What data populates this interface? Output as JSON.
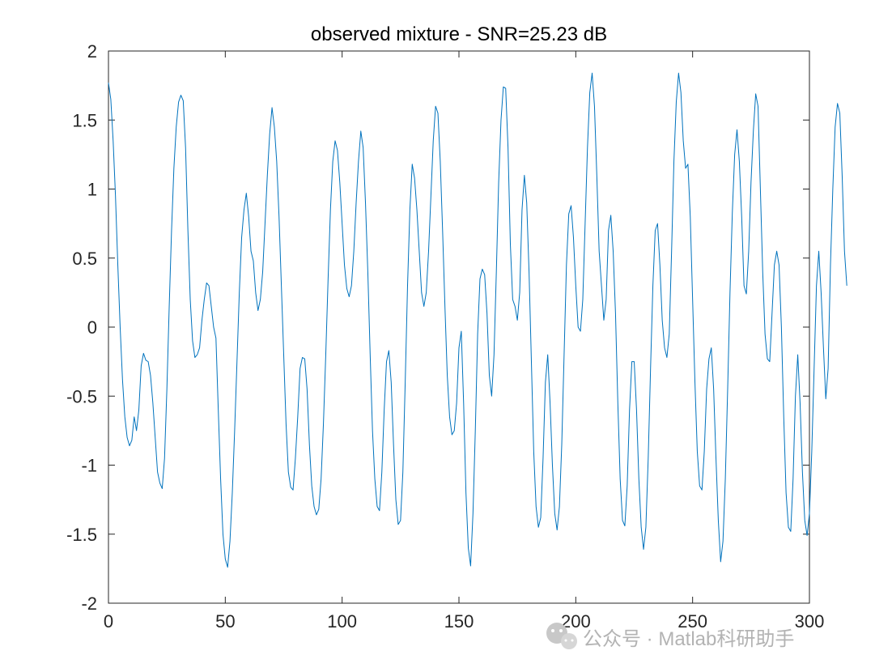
{
  "watermark": {
    "text": "公众号 · Matlab科研助手",
    "icon": "wechat-icon"
  },
  "chart_data": {
    "type": "line",
    "title": "observed mixture - SNR=25.23 dB",
    "xlabel": "",
    "ylabel": "",
    "xlim": [
      0,
      300
    ],
    "ylim": [
      -2,
      2
    ],
    "xticks": [
      0,
      50,
      100,
      150,
      200,
      250,
      300
    ],
    "yticks": [
      -2,
      -1.5,
      -1,
      -0.5,
      0,
      0.5,
      1,
      1.5,
      2
    ],
    "grid": false,
    "legend": "none",
    "colors": {
      "series": "#0072BD",
      "axes": "#262626"
    },
    "series": [
      {
        "x_start": 0,
        "x_step": 1,
        "y": [
          1.77,
          1.65,
          1.35,
          0.95,
          0.45,
          0.0,
          -0.38,
          -0.65,
          -0.8,
          -0.86,
          -0.82,
          -0.65,
          -0.75,
          -0.6,
          -0.28,
          -0.19,
          -0.24,
          -0.25,
          -0.35,
          -0.55,
          -0.8,
          -1.05,
          -1.13,
          -1.17,
          -0.95,
          -0.45,
          0.15,
          0.7,
          1.15,
          1.45,
          1.63,
          1.68,
          1.64,
          1.3,
          0.7,
          0.2,
          -0.1,
          -0.22,
          -0.2,
          -0.15,
          0.05,
          0.2,
          0.32,
          0.3,
          0.15,
          0.0,
          -0.08,
          -0.6,
          -1.1,
          -1.5,
          -1.68,
          -1.74,
          -1.55,
          -1.2,
          -0.75,
          -0.25,
          0.25,
          0.65,
          0.85,
          0.97,
          0.8,
          0.55,
          0.48,
          0.25,
          0.12,
          0.2,
          0.4,
          0.75,
          1.1,
          1.4,
          1.59,
          1.45,
          1.2,
          0.8,
          0.3,
          -0.2,
          -0.7,
          -1.05,
          -1.16,
          -1.18,
          -0.95,
          -0.65,
          -0.3,
          -0.22,
          -0.23,
          -0.45,
          -0.85,
          -1.15,
          -1.3,
          -1.36,
          -1.32,
          -1.1,
          -0.7,
          -0.2,
          0.35,
          0.85,
          1.2,
          1.35,
          1.28,
          1.05,
          0.75,
          0.45,
          0.28,
          0.22,
          0.3,
          0.55,
          0.9,
          1.2,
          1.42,
          1.3,
          0.9,
          0.4,
          -0.2,
          -0.75,
          -1.1,
          -1.3,
          -1.33,
          -1.05,
          -0.6,
          -0.25,
          -0.17,
          -0.4,
          -0.85,
          -1.25,
          -1.43,
          -1.4,
          -1.05,
          -0.4,
          0.3,
          0.85,
          1.18,
          1.08,
          0.85,
          0.55,
          0.25,
          0.15,
          0.25,
          0.55,
          0.95,
          1.35,
          1.6,
          1.55,
          1.2,
          0.7,
          0.15,
          -0.35,
          -0.65,
          -0.78,
          -0.75,
          -0.55,
          -0.15,
          -0.03,
          -0.55,
          -1.2,
          -1.6,
          -1.73,
          -1.35,
          -0.75,
          -0.05,
          0.35,
          0.42,
          0.38,
          0.1,
          -0.35,
          -0.5,
          -0.2,
          0.4,
          1.05,
          1.5,
          1.74,
          1.73,
          1.3,
          0.6,
          0.2,
          0.15,
          0.05,
          0.25,
          0.85,
          1.1,
          0.9,
          0.4,
          -0.25,
          -0.9,
          -1.3,
          -1.45,
          -1.38,
          -0.95,
          -0.4,
          -0.2,
          -0.55,
          -1.0,
          -1.35,
          -1.47,
          -1.3,
          -0.85,
          -0.2,
          0.45,
          0.82,
          0.88,
          0.65,
          0.3,
          0.0,
          -0.03,
          0.2,
          0.75,
          1.3,
          1.7,
          1.84,
          1.6,
          1.1,
          0.55,
          0.3,
          0.05,
          0.2,
          0.7,
          0.81,
          0.55,
          0.1,
          -0.55,
          -1.1,
          -1.4,
          -1.44,
          -1.15,
          -0.6,
          -0.25,
          -0.25,
          -0.6,
          -1.1,
          -1.45,
          -1.61,
          -1.45,
          -0.95,
          -0.3,
          0.3,
          0.7,
          0.75,
          0.45,
          0.05,
          -0.15,
          -0.22,
          -0.05,
          0.55,
          1.2,
          1.63,
          1.84,
          1.7,
          1.35,
          1.15,
          1.18,
          0.8,
          0.2,
          -0.4,
          -0.9,
          -1.15,
          -1.18,
          -0.9,
          -0.45,
          -0.23,
          -0.15,
          -0.45,
          -0.95,
          -1.4,
          -1.7,
          -1.55,
          -1.1,
          -0.45,
          0.25,
          0.83,
          1.25,
          1.43,
          1.2,
          0.8,
          0.3,
          0.24,
          0.55,
          1.05,
          1.42,
          1.69,
          1.6,
          1.0,
          0.4,
          -0.05,
          -0.23,
          -0.25,
          0.1,
          0.45,
          0.55,
          0.45,
          0.0,
          -0.65,
          -1.2,
          -1.45,
          -1.48,
          -1.1,
          -0.5,
          -0.2,
          -0.55,
          -1.05,
          -1.4,
          -1.51,
          -1.35,
          -0.9,
          -0.3,
          0.3,
          0.55,
          0.25,
          -0.15,
          -0.52,
          -0.3,
          0.45,
          1.0,
          1.45,
          1.62,
          1.55,
          1.1,
          0.55,
          0.3
        ]
      }
    ]
  }
}
